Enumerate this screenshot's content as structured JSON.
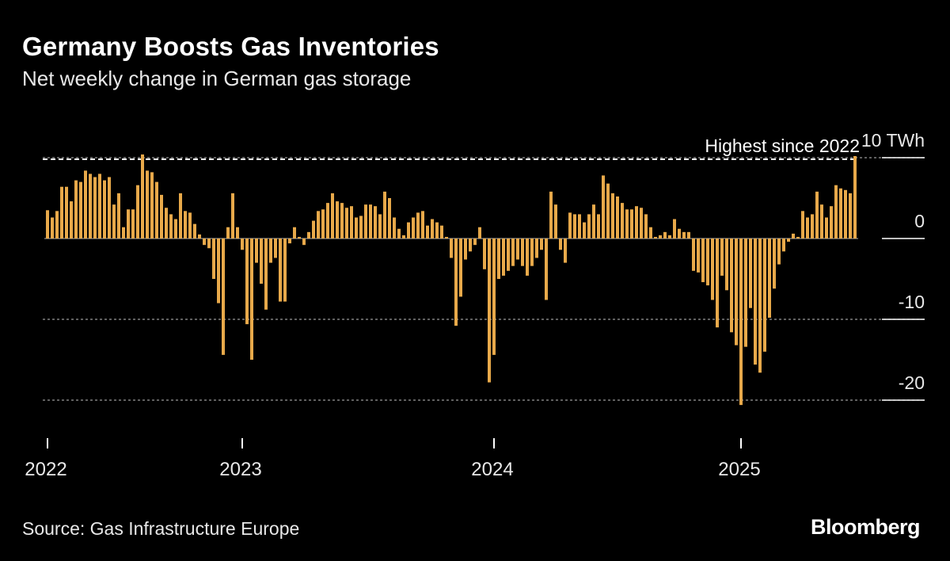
{
  "title": "Germany Boosts Gas Inventories",
  "subtitle": "Net weekly change in German gas storage",
  "source": "Source: Gas Infrastructure Europe",
  "brand": "Bloomberg",
  "colors": {
    "background": "#000000",
    "bar": "#e8a94a",
    "grid": "#9a9a9a",
    "text": "#e8e8e8"
  },
  "chart_data": {
    "type": "bar",
    "title": "Germany Boosts Gas Inventories",
    "subtitle": "Net weekly change in German gas storage",
    "ylabel": "",
    "yunit": "TWh",
    "ylim": [
      -23,
      12
    ],
    "yticks": [
      10,
      0,
      -10,
      -20
    ],
    "ytick_labels": [
      "10 TWh",
      "0",
      "-10",
      "-20"
    ],
    "xticks": [
      {
        "label": "2022",
        "index": 0
      },
      {
        "label": "2023",
        "index": 41
      },
      {
        "label": "2024",
        "index": 94
      },
      {
        "label": "2025",
        "index": 146
      }
    ],
    "annotation": {
      "text": "Highest since 2022",
      "value": 10
    },
    "values": [
      3.5,
      2.6,
      3.4,
      6.4,
      6.4,
      4.6,
      7.2,
      7.0,
      8.4,
      8.0,
      7.6,
      8.0,
      7.2,
      7.6,
      4.2,
      5.6,
      1.4,
      3.6,
      3.6,
      6.6,
      10.4,
      8.4,
      8.2,
      7.0,
      5.4,
      3.8,
      3.0,
      2.4,
      5.6,
      3.4,
      3.2,
      1.8,
      0.5,
      -0.8,
      -1.2,
      -5.0,
      -8.0,
      -14.4,
      1.4,
      5.6,
      1.4,
      -1.4,
      -10.6,
      -15.0,
      -3.0,
      -5.6,
      -8.8,
      -3.0,
      -2.4,
      -7.8,
      -7.8,
      -0.6,
      1.4,
      0.2,
      -0.8,
      0.8,
      2.2,
      3.4,
      3.6,
      4.4,
      5.6,
      4.6,
      4.4,
      3.8,
      4.0,
      2.6,
      2.8,
      4.2,
      4.2,
      4.0,
      3.0,
      5.8,
      5.0,
      2.6,
      1.2,
      0.4,
      2.0,
      2.6,
      3.2,
      3.4,
      1.6,
      2.4,
      2.0,
      1.6,
      0.2,
      -2.4,
      -10.8,
      -7.2,
      -2.6,
      -1.6,
      -0.8,
      1.4,
      -3.8,
      -17.8,
      -14.4,
      -5.0,
      -4.6,
      -4.0,
      -3.4,
      -2.6,
      -3.4,
      -4.6,
      -3.4,
      -2.4,
      -1.4,
      -7.6,
      5.8,
      4.2,
      -1.4,
      -3.0,
      3.2,
      3.0,
      3.0,
      2.0,
      3.0,
      4.2,
      3.0,
      7.8,
      6.8,
      5.6,
      5.2,
      4.4,
      3.6,
      3.6,
      4.0,
      3.8,
      3.0,
      1.4,
      0.2,
      0.4,
      0.8,
      0.4,
      2.4,
      1.2,
      0.8,
      0.8,
      -4.0,
      -4.2,
      -5.4,
      -5.8,
      -7.6,
      -11.0,
      -4.6,
      -6.4,
      -11.6,
      -13.2,
      -20.6,
      -13.4,
      -8.6,
      -15.6,
      -16.6,
      -14.0,
      -9.8,
      -6.2,
      -3.2,
      -1.6,
      -0.4,
      0.6,
      0.2,
      3.4,
      2.6,
      3.0,
      5.8,
      4.2,
      2.6,
      4.0,
      6.6,
      6.2,
      6.0,
      5.6,
      10.2
    ]
  }
}
